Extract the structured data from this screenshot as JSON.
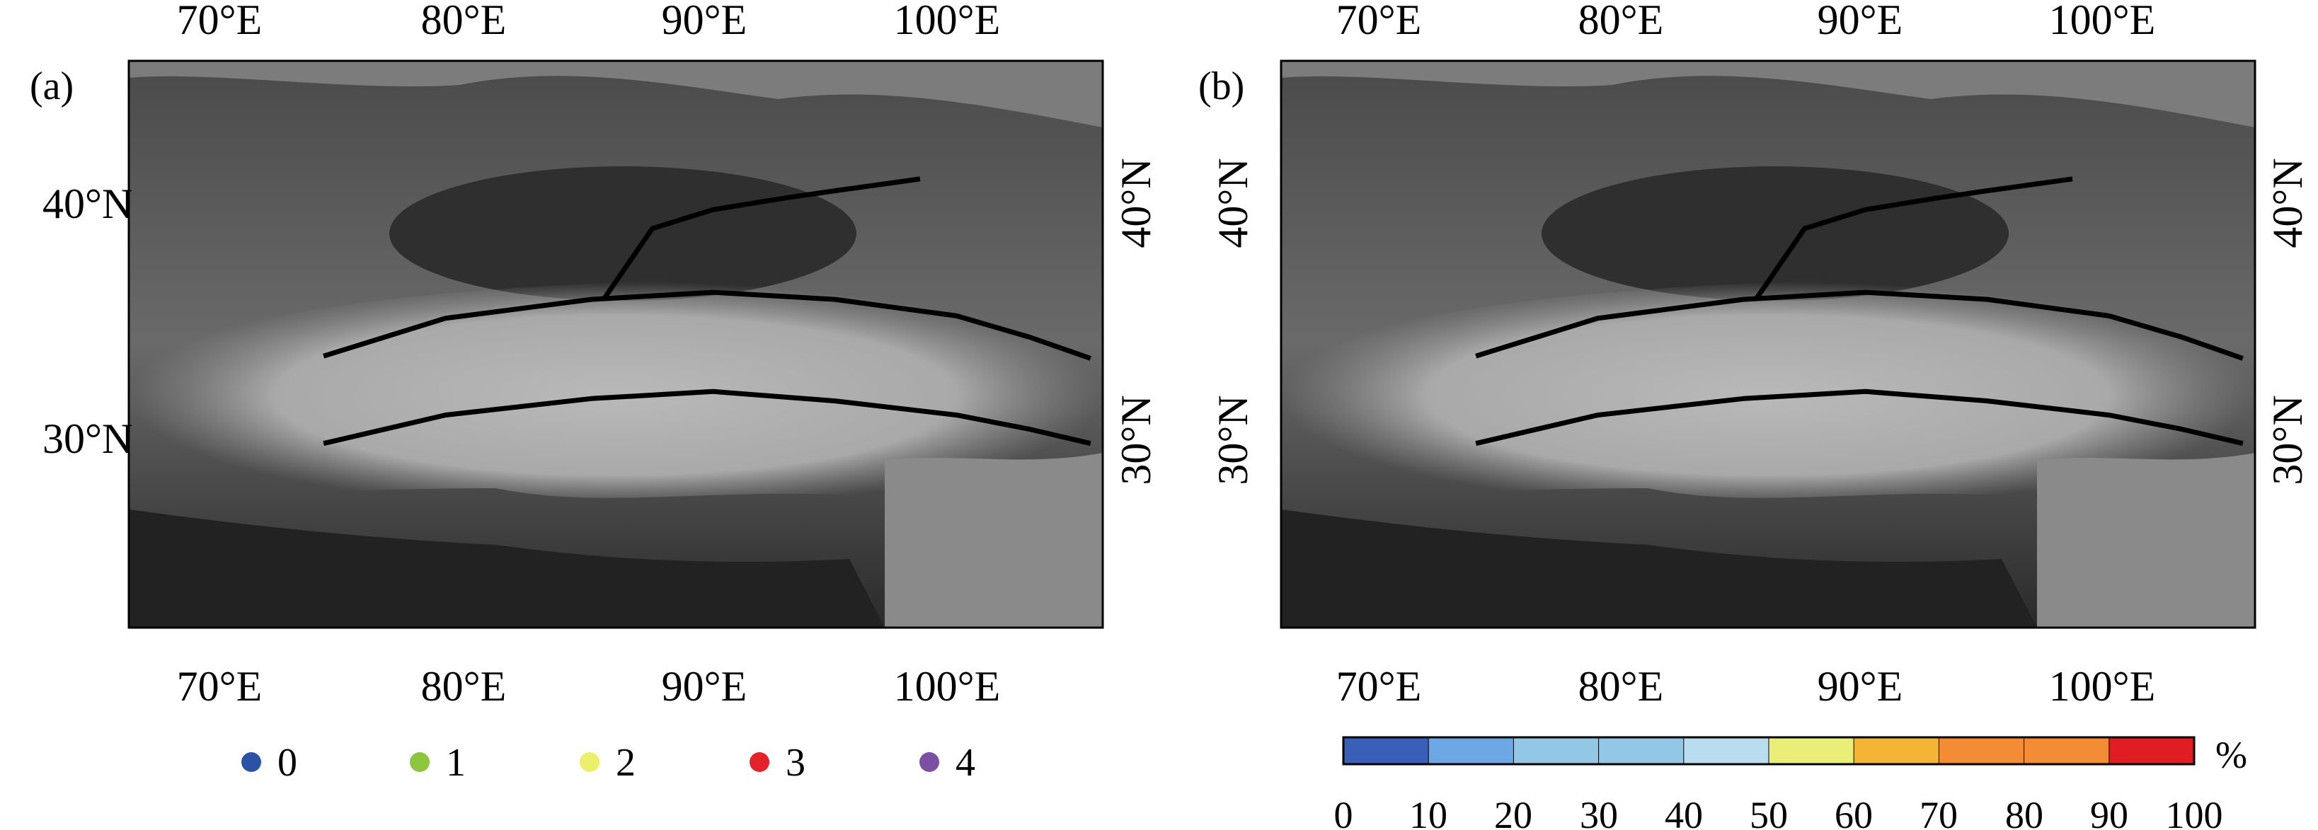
{
  "panels": [
    {
      "label": "(a)",
      "lon_ticks": [
        "70°E",
        "80°E",
        "90°E",
        "100°E"
      ],
      "lat_ticks": [
        "40°N",
        "30°N"
      ]
    },
    {
      "label": "(b)",
      "lon_ticks": [
        "70°E",
        "80°E",
        "90°E",
        "100°E"
      ],
      "lat_ticks": [
        "40°N",
        "30°N"
      ]
    }
  ],
  "map_extent": {
    "lon": [
      67,
      107
    ],
    "lat": [
      22,
      46
    ]
  },
  "boundary_lines": [
    {
      "name": "northern",
      "points": [
        [
          86.5,
          35.9
        ],
        [
          88.5,
          38.9
        ],
        [
          91.0,
          39.7
        ],
        [
          94.0,
          40.2
        ],
        [
          96.0,
          40.5
        ],
        [
          99.5,
          41.0
        ]
      ]
    },
    {
      "name": "middle",
      "points": [
        [
          75.0,
          33.5
        ],
        [
          80.0,
          35.1
        ],
        [
          86.0,
          35.9
        ],
        [
          91.0,
          36.2
        ],
        [
          96.0,
          35.9
        ],
        [
          101.0,
          35.2
        ],
        [
          104.0,
          34.3
        ],
        [
          106.5,
          33.4
        ]
      ]
    },
    {
      "name": "southern",
      "points": [
        [
          75.0,
          29.8
        ],
        [
          80.0,
          31.0
        ],
        [
          86.0,
          31.7
        ],
        [
          91.0,
          32.0
        ],
        [
          96.0,
          31.6
        ],
        [
          101.0,
          31.0
        ],
        [
          104.0,
          30.4
        ],
        [
          106.5,
          29.8
        ]
      ]
    }
  ],
  "legend_a": {
    "items": [
      {
        "label": "0",
        "color": "#2a52a6"
      },
      {
        "label": "1",
        "color": "#8cc63f"
      },
      {
        "label": "2",
        "color": "#ecef6a"
      },
      {
        "label": "3",
        "color": "#e3222b"
      },
      {
        "label": "4",
        "color": "#7b4fa3"
      }
    ]
  },
  "colorbar_b": {
    "unit": "%",
    "ticks": [
      "0",
      "10",
      "20",
      "30",
      "40",
      "50",
      "60",
      "70",
      "80",
      "90",
      "100"
    ],
    "colors": [
      "#3a5fb8",
      "#6ea7e6",
      "#93c7e6",
      "#93c7e6",
      "#b9ddef",
      "#e8ee78",
      "#f4b436",
      "#f48c35",
      "#f48c35",
      "#e11d24"
    ]
  }
}
